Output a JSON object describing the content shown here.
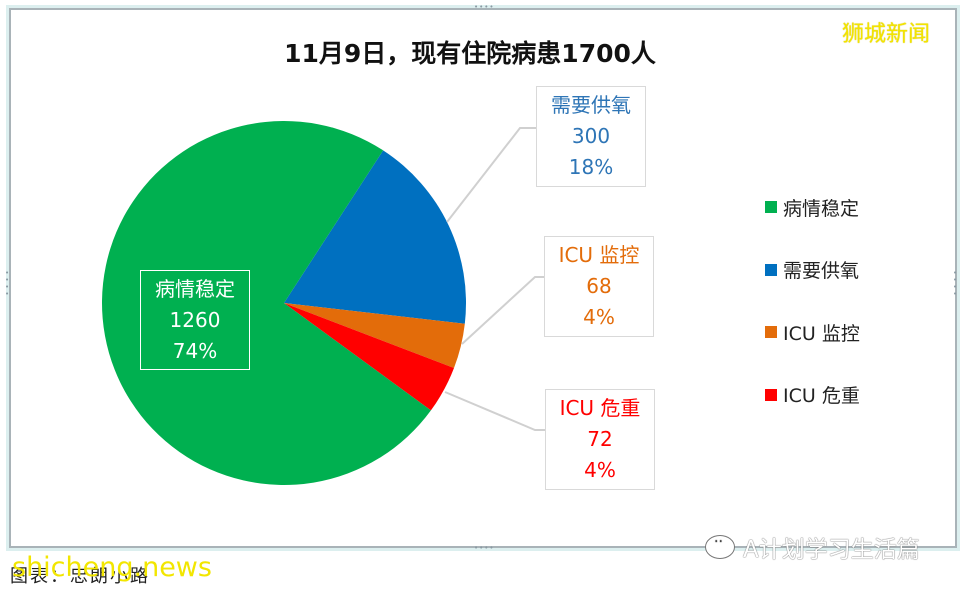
{
  "header": {
    "title": "11月9日，现有住院病患1700人",
    "brand": "狮城新闻"
  },
  "chart_data": {
    "type": "pie",
    "title": "11月9日，现有住院病患1700人",
    "total": 1700,
    "categories": [
      "病情稳定",
      "需要供氧",
      "ICU 监控",
      "ICU 危重"
    ],
    "values": [
      1260,
      300,
      68,
      72
    ],
    "percentages": [
      "74%",
      "18%",
      "4%",
      "4%"
    ],
    "colors": [
      "#00b050",
      "#0070c0",
      "#e36c0a",
      "#ff0000"
    ],
    "legend_position": "right"
  },
  "labels": [
    {
      "name": "病情稳定",
      "value": "1260",
      "pct": "74%",
      "color": "#ffffff"
    },
    {
      "name": "需要供氧",
      "value": "300",
      "pct": "18%",
      "color": "#2e75b6"
    },
    {
      "name": "ICU 监控",
      "value": "68",
      "pct": "4%",
      "color": "#e36c0a"
    },
    {
      "name": "ICU 危重",
      "value": "72",
      "pct": "4%",
      "color": "#ff0000"
    }
  ],
  "legend": [
    {
      "label": "病情稳定",
      "color": "#00b050"
    },
    {
      "label": "需要供氧",
      "color": "#0070c0"
    },
    {
      "label": "ICU 监控",
      "color": "#e36c0a"
    },
    {
      "label": "ICU 危重",
      "color": "#ff0000"
    }
  ],
  "footer": {
    "caption": "图表：忠朗小路",
    "watermark_site": "shicheng.news",
    "watermark_account": "A计划学习生活篇"
  }
}
